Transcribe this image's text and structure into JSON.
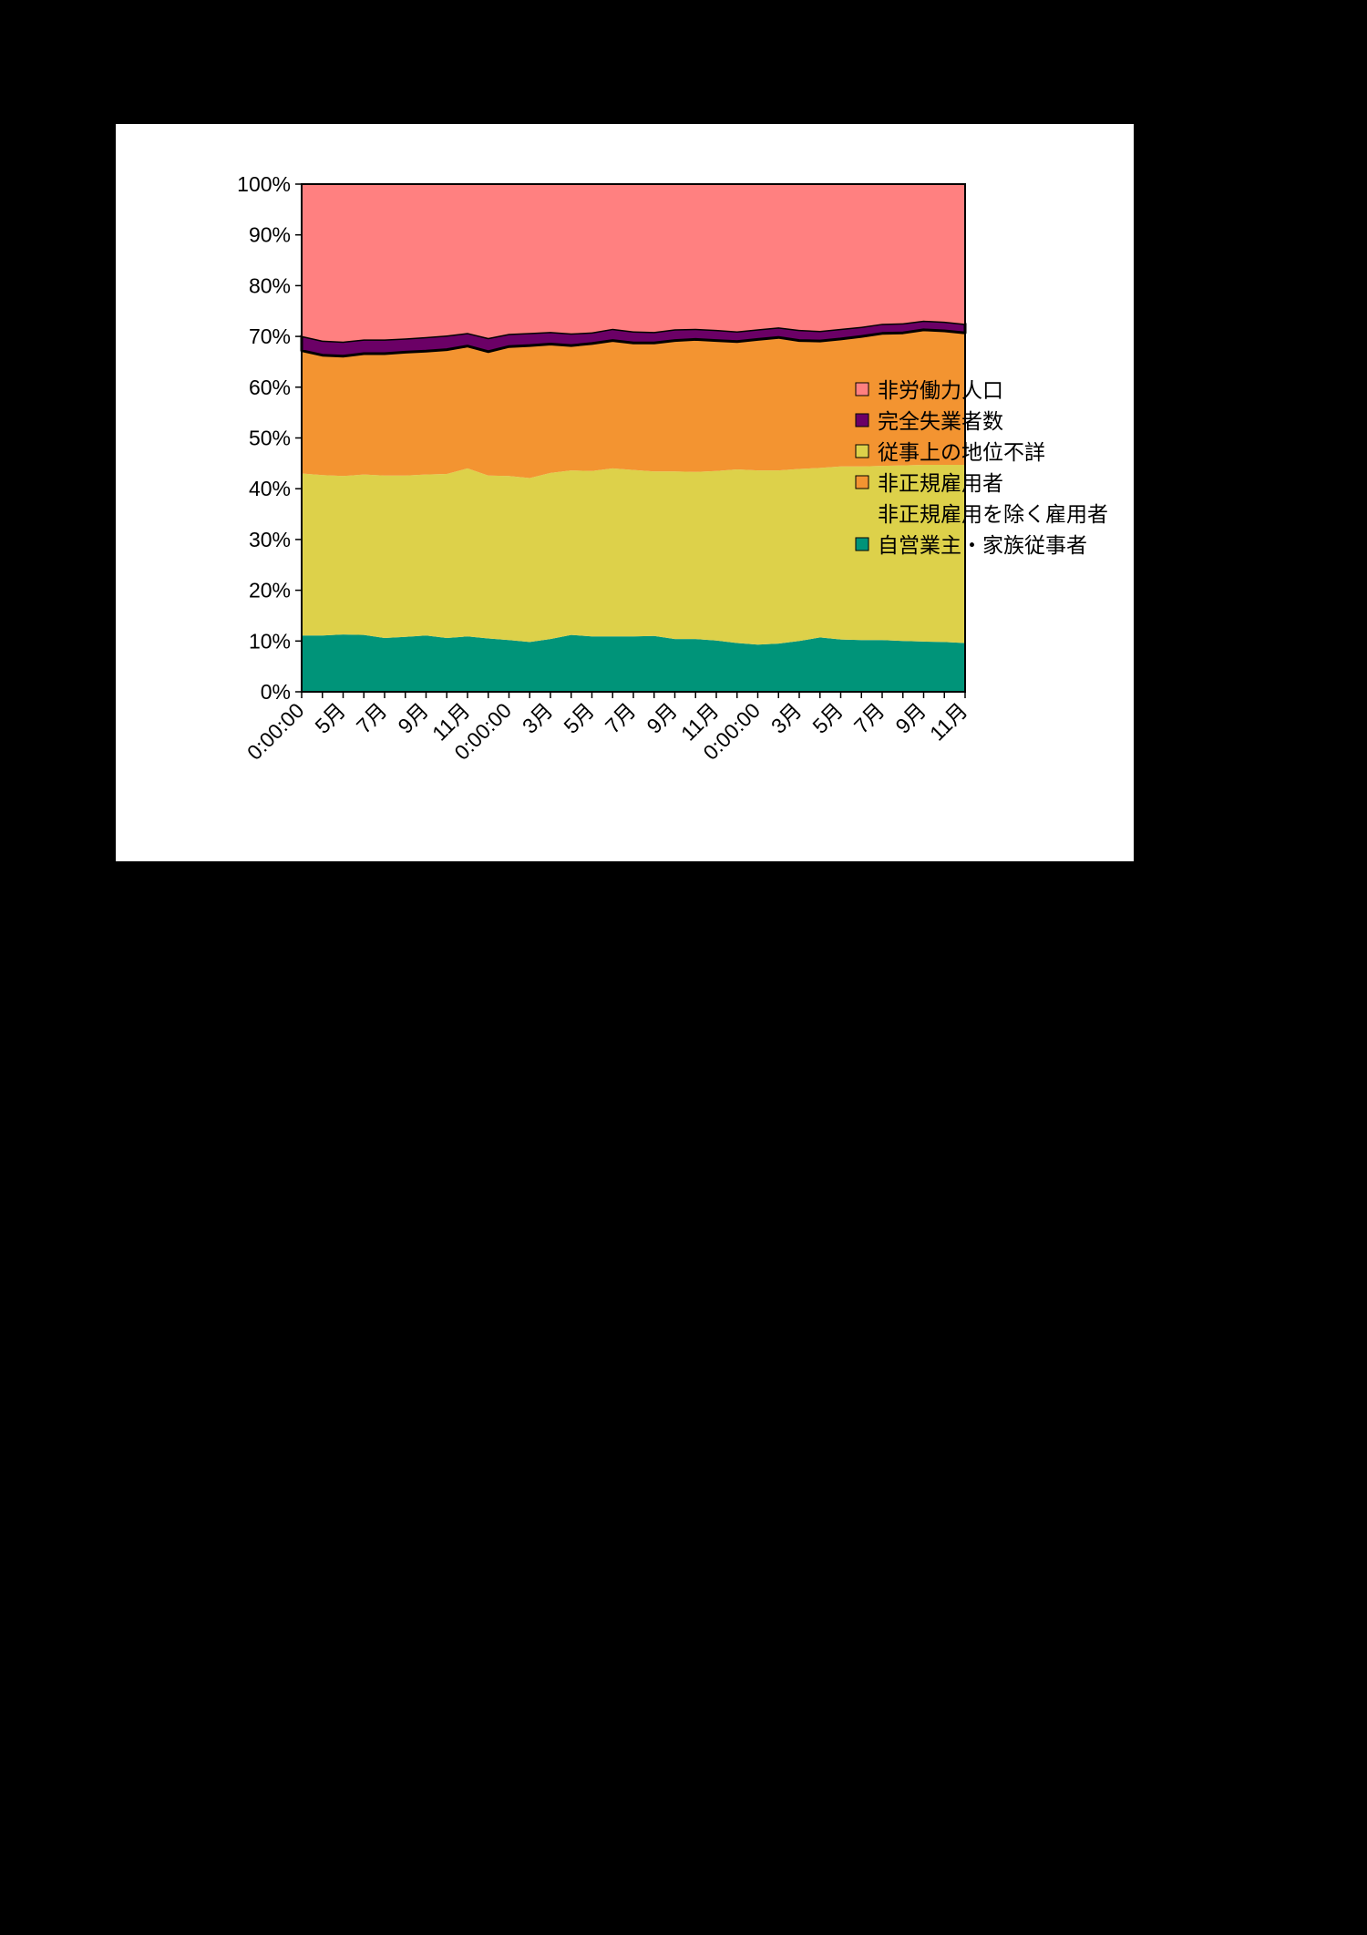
{
  "chart_data": {
    "type": "area",
    "stacked": true,
    "normalized_percent": true,
    "title": "",
    "xlabel": "",
    "ylabel": "",
    "ylim": [
      0,
      100
    ],
    "y_ticks": [
      "0%",
      "10%",
      "20%",
      "30%",
      "40%",
      "50%",
      "60%",
      "70%",
      "80%",
      "90%",
      "100%"
    ],
    "categories": [
      "0:00:00",
      "",
      "5月",
      "",
      "7月",
      "",
      "9月",
      "",
      "11月",
      "",
      "0:00:00",
      "",
      "3月",
      "",
      "5月",
      "",
      "7月",
      "",
      "9月",
      "",
      "11月",
      "",
      "0:00:00",
      "",
      "3月",
      "",
      "5月",
      "",
      "7月",
      "",
      "9月",
      "",
      "11月"
    ],
    "grid": false,
    "legend_position": "right",
    "colors": {
      "自営業主・家族従事者": "#009479",
      "非正規雇用を除く雇用者": "#ffffff",
      "非正規雇用者": "#f39431",
      "従事上の地位不詳": "#ddd14a",
      "完全失業者数": "#6b0066",
      "非労働力人口": "#ff8080",
      "seg1_area": "#ddd14a",
      "seg2_area": "#f39431"
    },
    "series": [
      {
        "name": "自営業主・家族従事者",
        "values": [
          11.1,
          11.1,
          11.3,
          11.2,
          10.6,
          10.8,
          11.1,
          10.6,
          10.9,
          10.5,
          10.2,
          9.8,
          10.4,
          11.2,
          10.9,
          10.9,
          10.9,
          11.0,
          10.4,
          10.4,
          10.1,
          9.6,
          9.3,
          9.5,
          10.0,
          10.7,
          10.3,
          10.2,
          10.2,
          10.0,
          9.9,
          9.8,
          9.6
        ]
      },
      {
        "name": "従事上の地位不詳",
        "values": [
          31.9,
          31.6,
          31.2,
          31.6,
          32.0,
          31.8,
          31.7,
          32.3,
          33.1,
          32.1,
          32.3,
          32.3,
          32.7,
          32.4,
          32.6,
          33.1,
          32.8,
          32.4,
          33.0,
          32.9,
          33.4,
          34.2,
          34.3,
          34.1,
          33.9,
          33.4,
          34.1,
          34.2,
          34.3,
          34.6,
          34.8,
          34.9,
          35.1
        ]
      },
      {
        "name": "非正規雇用者",
        "values": [
          24.2,
          23.6,
          23.6,
          23.8,
          24.0,
          24.3,
          24.3,
          24.5,
          24.1,
          24.4,
          25.5,
          26.1,
          25.4,
          24.6,
          25.1,
          25.2,
          25.0,
          25.3,
          25.8,
          26.1,
          25.7,
          25.2,
          25.8,
          26.2,
          25.3,
          25.0,
          25.1,
          25.6,
          26.1,
          26.1,
          26.6,
          26.4,
          26.0
        ]
      },
      {
        "name": "完全失業者数",
        "values": [
          2.9,
          2.9,
          2.9,
          2.8,
          2.8,
          2.7,
          2.8,
          2.8,
          2.6,
          2.7,
          2.5,
          2.5,
          2.4,
          2.4,
          2.2,
          2.3,
          2.3,
          2.2,
          2.2,
          2.1,
          2.1,
          2.0,
          2.0,
          2.0,
          2.1,
          2.0,
          2.0,
          1.9,
          1.9,
          1.9,
          1.8,
          1.8,
          1.8
        ]
      },
      {
        "name": "非労働力人口",
        "values": [
          29.9,
          30.8,
          31.0,
          30.6,
          30.6,
          30.4,
          30.1,
          29.8,
          29.3,
          30.3,
          29.5,
          29.3,
          29.1,
          29.4,
          29.2,
          28.5,
          29.0,
          29.1,
          28.6,
          28.5,
          28.7,
          29.0,
          28.6,
          28.2,
          28.7,
          28.9,
          28.5,
          28.1,
          27.5,
          27.4,
          26.9,
          27.1,
          27.5
        ]
      }
    ],
    "legend": [
      {
        "label": "非労働力人口",
        "series": "非労働力人口"
      },
      {
        "label": "完全失業者数",
        "series": "完全失業者数"
      },
      {
        "label": "従事上の地位不詳",
        "series": "従事上の地位不詳"
      },
      {
        "label": "非正規雇用者",
        "series": "非正規雇用者"
      },
      {
        "label": "非正規雇用を除く雇用者",
        "series": "非正規雇用を除く雇用者"
      },
      {
        "label": "自営業主・家族従事者",
        "series": "自営業主・家族従事者"
      }
    ]
  }
}
